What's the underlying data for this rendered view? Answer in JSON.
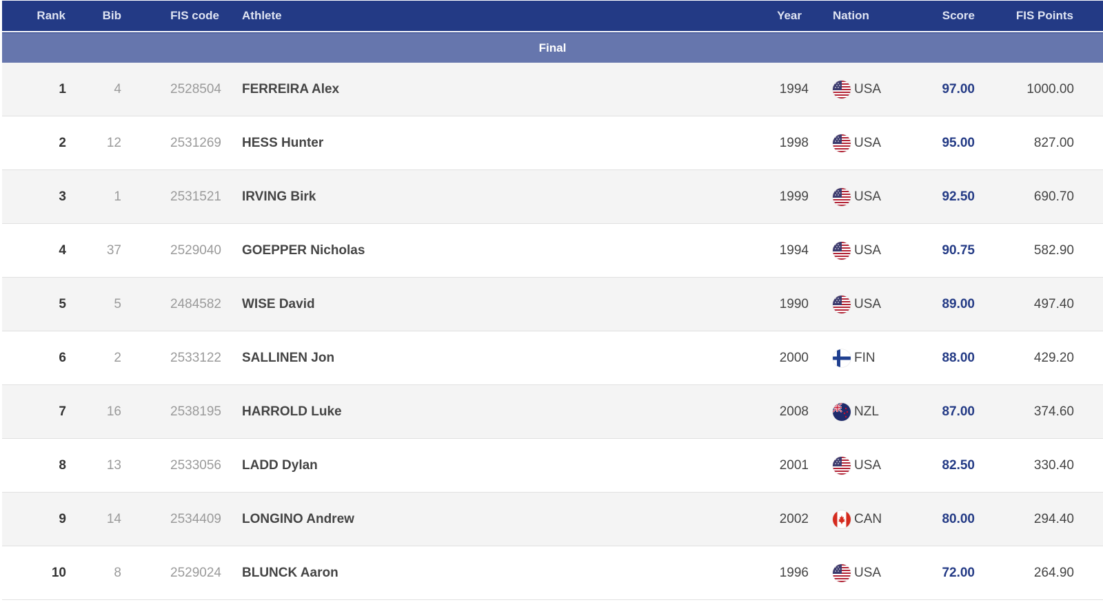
{
  "header": {
    "rank": "Rank",
    "bib": "Bib",
    "fis_code": "FIS code",
    "athlete": "Athlete",
    "year": "Year",
    "nation": "Nation",
    "score": "Score",
    "fis_points": "FIS Points"
  },
  "section_label": "Final",
  "colors": {
    "header_bg": "#233a85",
    "section_bg": "#6676ad",
    "score_text": "#233a85",
    "row_alt_bg": "#f4f4f4"
  },
  "rows": [
    {
      "rank": "1",
      "bib": "4",
      "fis_code": "2528504",
      "athlete": "FERREIRA Alex",
      "year": "1994",
      "nation": "USA",
      "flag_icon": "usa-flag-icon",
      "score": "97.00",
      "fis_points": "1000.00"
    },
    {
      "rank": "2",
      "bib": "12",
      "fis_code": "2531269",
      "athlete": "HESS Hunter",
      "year": "1998",
      "nation": "USA",
      "flag_icon": "usa-flag-icon",
      "score": "95.00",
      "fis_points": "827.00"
    },
    {
      "rank": "3",
      "bib": "1",
      "fis_code": "2531521",
      "athlete": "IRVING Birk",
      "year": "1999",
      "nation": "USA",
      "flag_icon": "usa-flag-icon",
      "score": "92.50",
      "fis_points": "690.70"
    },
    {
      "rank": "4",
      "bib": "37",
      "fis_code": "2529040",
      "athlete": "GOEPPER Nicholas",
      "year": "1994",
      "nation": "USA",
      "flag_icon": "usa-flag-icon",
      "score": "90.75",
      "fis_points": "582.90"
    },
    {
      "rank": "5",
      "bib": "5",
      "fis_code": "2484582",
      "athlete": "WISE David",
      "year": "1990",
      "nation": "USA",
      "flag_icon": "usa-flag-icon",
      "score": "89.00",
      "fis_points": "497.40"
    },
    {
      "rank": "6",
      "bib": "2",
      "fis_code": "2533122",
      "athlete": "SALLINEN Jon",
      "year": "2000",
      "nation": "FIN",
      "flag_icon": "finland-flag-icon",
      "score": "88.00",
      "fis_points": "429.20"
    },
    {
      "rank": "7",
      "bib": "16",
      "fis_code": "2538195",
      "athlete": "HARROLD Luke",
      "year": "2008",
      "nation": "NZL",
      "flag_icon": "new-zealand-flag-icon",
      "score": "87.00",
      "fis_points": "374.60"
    },
    {
      "rank": "8",
      "bib": "13",
      "fis_code": "2533056",
      "athlete": "LADD Dylan",
      "year": "2001",
      "nation": "USA",
      "flag_icon": "usa-flag-icon",
      "score": "82.50",
      "fis_points": "330.40"
    },
    {
      "rank": "9",
      "bib": "14",
      "fis_code": "2534409",
      "athlete": "LONGINO Andrew",
      "year": "2002",
      "nation": "CAN",
      "flag_icon": "canada-flag-icon",
      "score": "80.00",
      "fis_points": "294.40"
    },
    {
      "rank": "10",
      "bib": "8",
      "fis_code": "2529024",
      "athlete": "BLUNCK Aaron",
      "year": "1996",
      "nation": "USA",
      "flag_icon": "usa-flag-icon",
      "score": "72.00",
      "fis_points": "264.90"
    }
  ]
}
